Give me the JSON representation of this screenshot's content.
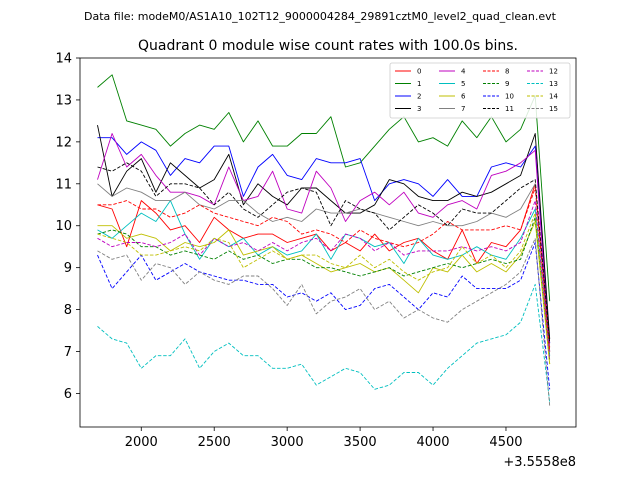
{
  "file_label": "Data file: modeM0/AS1A10_102T12_9000004284_29891cztM0_level2_quad_clean.evt",
  "chart_data": {
    "type": "line",
    "title": "Quadrant 0 module wise count rates with 100.0s bins.",
    "xlabel": "",
    "ylabel": "",
    "x_offset_label": "+3.5558e8",
    "xlim": [
      1580,
      4980
    ],
    "ylim": [
      5.2,
      14.0
    ],
    "x_ticks": [
      2000,
      2500,
      3000,
      3500,
      4000,
      4500
    ],
    "y_ticks": [
      6,
      7,
      8,
      9,
      10,
      11,
      12,
      13,
      14
    ],
    "x": [
      1700,
      1800,
      1900,
      2000,
      2100,
      2200,
      2300,
      2400,
      2500,
      2600,
      2700,
      2800,
      2900,
      3000,
      3100,
      3200,
      3300,
      3400,
      3500,
      3600,
      3700,
      3800,
      3900,
      4000,
      4100,
      4200,
      4300,
      4400,
      4500,
      4600,
      4700,
      4800
    ],
    "legend_position": "upper right",
    "series": [
      {
        "name": "0",
        "color": "#ff0000",
        "dash": "solid",
        "values": [
          10.5,
          10.4,
          9.5,
          10.6,
          10.3,
          9.9,
          10.0,
          9.6,
          10.2,
          9.9,
          9.7,
          9.8,
          9.8,
          9.6,
          9.7,
          9.8,
          9.4,
          9.6,
          9.4,
          9.8,
          9.4,
          9.6,
          9.7,
          9.4,
          9.2,
          9.9,
          9.1,
          9.6,
          9.5,
          9.9,
          11.0,
          7.1
        ]
      },
      {
        "name": "1",
        "color": "#008000",
        "dash": "solid",
        "values": [
          13.3,
          13.6,
          12.5,
          12.4,
          12.3,
          11.9,
          12.2,
          12.4,
          12.3,
          12.7,
          12.0,
          12.5,
          11.9,
          11.9,
          12.2,
          12.2,
          12.6,
          11.4,
          11.5,
          11.9,
          12.3,
          12.6,
          12.0,
          12.1,
          11.9,
          12.5,
          12.1,
          12.6,
          12.0,
          12.3,
          13.1,
          8.2
        ]
      },
      {
        "name": "2",
        "color": "#0000ff",
        "dash": "solid",
        "values": [
          12.1,
          12.1,
          11.7,
          12.0,
          11.8,
          11.2,
          11.6,
          11.5,
          11.9,
          11.9,
          10.7,
          11.4,
          11.7,
          11.2,
          11.1,
          11.6,
          11.5,
          11.5,
          11.6,
          10.6,
          11.0,
          11.1,
          11.0,
          10.7,
          11.1,
          10.7,
          10.7,
          11.4,
          11.5,
          11.4,
          11.9,
          7.2
        ]
      },
      {
        "name": "3",
        "color": "#000000",
        "dash": "solid",
        "values": [
          12.4,
          10.7,
          11.3,
          11.6,
          10.8,
          11.5,
          11.2,
          10.9,
          11.1,
          11.7,
          10.5,
          11.0,
          10.7,
          10.5,
          10.9,
          10.9,
          10.6,
          10.3,
          10.3,
          10.5,
          11.1,
          11.0,
          10.7,
          10.6,
          10.6,
          10.8,
          10.7,
          10.8,
          11.0,
          11.2,
          12.2,
          7.3
        ]
      },
      {
        "name": "4",
        "color": "#bf00bf",
        "dash": "solid",
        "values": [
          11.1,
          12.2,
          11.4,
          11.7,
          11.2,
          10.8,
          10.8,
          10.7,
          10.5,
          11.4,
          10.6,
          10.7,
          11.3,
          10.4,
          10.3,
          11.3,
          10.9,
          10.1,
          10.6,
          10.8,
          10.5,
          10.8,
          10.3,
          10.2,
          10.5,
          10.6,
          10.4,
          11.2,
          11.3,
          11.5,
          11.8,
          7.0
        ]
      },
      {
        "name": "5",
        "color": "#00bfbf",
        "dash": "solid",
        "values": [
          9.9,
          9.7,
          10.0,
          10.3,
          10.1,
          10.6,
          9.8,
          9.2,
          9.7,
          9.5,
          9.7,
          9.3,
          9.5,
          9.3,
          9.4,
          9.8,
          9.2,
          9.8,
          9.7,
          9.5,
          9.6,
          9.1,
          9.7,
          9.3,
          9.2,
          9.3,
          9.5,
          9.3,
          9.2,
          9.7,
          10.4,
          6.9
        ]
      },
      {
        "name": "6",
        "color": "#bfbf00",
        "dash": "solid",
        "values": [
          10.0,
          10.0,
          9.7,
          9.8,
          9.7,
          9.4,
          9.6,
          9.5,
          9.6,
          9.9,
          9.3,
          9.4,
          9.5,
          9.2,
          9.3,
          9.1,
          8.9,
          9.0,
          9.1,
          8.9,
          9.0,
          8.7,
          8.4,
          9.0,
          8.9,
          9.3,
          8.9,
          9.1,
          8.9,
          9.3,
          10.1,
          6.7
        ]
      },
      {
        "name": "7",
        "color": "#808080",
        "dash": "solid",
        "values": [
          11.0,
          10.7,
          10.9,
          10.8,
          10.6,
          10.6,
          10.8,
          10.5,
          10.4,
          10.6,
          10.6,
          10.3,
          10.1,
          10.2,
          10.1,
          10.4,
          10.3,
          10.3,
          10.4,
          10.3,
          10.2,
          10.1,
          10.0,
          10.1,
          10.0,
          10.0,
          10.1,
          10.3,
          10.2,
          10.4,
          11.0,
          7.0
        ]
      },
      {
        "name": "8",
        "color": "#ff0000",
        "dash": "dashed",
        "values": [
          10.5,
          10.5,
          10.6,
          10.4,
          10.4,
          10.2,
          10.3,
          10.5,
          10.3,
          10.2,
          10.1,
          10.0,
          10.2,
          10.1,
          9.8,
          9.9,
          9.8,
          9.6,
          9.9,
          9.7,
          9.6,
          9.5,
          9.6,
          9.8,
          10.1,
          9.9,
          9.9,
          9.9,
          10.0,
          9.9,
          10.9,
          7.0
        ]
      },
      {
        "name": "9",
        "color": "#008000",
        "dash": "dashed",
        "values": [
          9.8,
          9.9,
          9.8,
          9.5,
          9.5,
          9.3,
          9.4,
          9.3,
          9.2,
          9.4,
          9.2,
          9.3,
          9.1,
          9.2,
          9.2,
          9.0,
          9.0,
          8.9,
          8.8,
          8.9,
          9.0,
          8.8,
          8.9,
          9.0,
          9.1,
          9.0,
          9.1,
          9.2,
          9.1,
          9.2,
          10.2,
          6.8
        ]
      },
      {
        "name": "10",
        "color": "#0000ff",
        "dash": "dashed",
        "values": [
          9.3,
          8.5,
          8.9,
          9.3,
          8.7,
          8.9,
          9.1,
          8.9,
          8.8,
          8.7,
          8.7,
          8.6,
          8.6,
          8.3,
          8.4,
          8.2,
          8.4,
          8.0,
          8.1,
          8.5,
          8.6,
          8.3,
          8.0,
          8.4,
          8.3,
          8.8,
          8.5,
          8.5,
          8.5,
          8.7,
          9.6,
          6.1
        ]
      },
      {
        "name": "11",
        "color": "#000000",
        "dash": "dashed",
        "values": [
          11.4,
          11.3,
          11.5,
          11.3,
          10.7,
          11.0,
          11.0,
          10.9,
          10.5,
          10.8,
          10.4,
          10.2,
          10.5,
          10.8,
          10.9,
          10.8,
          10.0,
          10.6,
          10.4,
          10.3,
          9.9,
          10.2,
          10.5,
          10.3,
          10.0,
          10.4,
          10.3,
          10.3,
          10.6,
          10.9,
          11.1,
          7.2
        ]
      },
      {
        "name": "12",
        "color": "#bf00bf",
        "dash": "dashed",
        "values": [
          9.7,
          9.5,
          9.6,
          9.6,
          9.5,
          9.6,
          9.8,
          9.3,
          9.7,
          9.5,
          9.6,
          9.4,
          9.6,
          9.4,
          9.6,
          9.7,
          9.4,
          9.8,
          9.7,
          9.4,
          9.6,
          9.3,
          9.4,
          9.4,
          9.4,
          9.5,
          9.4,
          9.5,
          9.4,
          9.6,
          10.6,
          6.8
        ]
      },
      {
        "name": "13",
        "color": "#00bfbf",
        "dash": "dashed",
        "values": [
          7.6,
          7.3,
          7.2,
          6.6,
          6.9,
          6.9,
          7.3,
          6.6,
          7.0,
          7.2,
          6.9,
          6.9,
          6.6,
          6.6,
          6.7,
          6.2,
          6.4,
          6.6,
          6.5,
          6.1,
          6.2,
          6.5,
          6.5,
          6.2,
          6.6,
          6.9,
          7.2,
          7.3,
          7.4,
          7.7,
          8.6,
          5.8
        ]
      },
      {
        "name": "14",
        "color": "#bfbf00",
        "dash": "dashed",
        "values": [
          9.8,
          9.7,
          9.6,
          9.3,
          9.3,
          9.4,
          9.5,
          9.4,
          9.7,
          9.6,
          9.0,
          9.2,
          9.4,
          9.2,
          9.3,
          9.3,
          9.1,
          9.0,
          9.3,
          9.0,
          9.2,
          8.9,
          8.7,
          8.9,
          9.0,
          9.5,
          9.1,
          9.3,
          9.0,
          9.4,
          10.3,
          6.7
        ]
      },
      {
        "name": "15",
        "color": "#808080",
        "dash": "dashed",
        "values": [
          9.4,
          9.2,
          9.3,
          8.7,
          9.1,
          9.0,
          8.6,
          8.9,
          8.7,
          8.6,
          8.8,
          8.8,
          8.5,
          8.1,
          8.6,
          7.9,
          8.2,
          8.3,
          8.5,
          8.0,
          8.2,
          7.8,
          8.0,
          7.8,
          7.7,
          8.0,
          8.2,
          8.4,
          8.6,
          8.9,
          9.7,
          5.7
        ]
      }
    ]
  }
}
